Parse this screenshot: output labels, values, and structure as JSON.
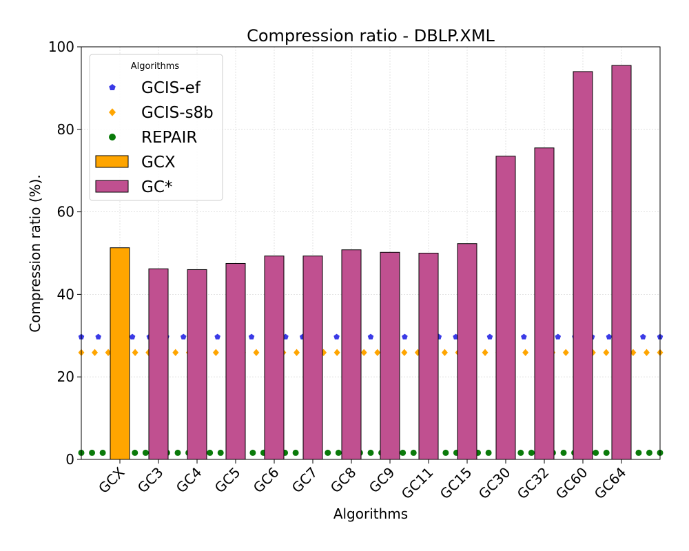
{
  "chart_data": {
    "type": "bar",
    "title": "Compression ratio -  DBLP.XML",
    "xlabel": "Algorithms",
    "ylabel": "Compression ratio (%).",
    "ylim": [
      0,
      100
    ],
    "yticks": [
      0,
      20,
      40,
      60,
      80,
      100
    ],
    "grid": true,
    "legend_placement": "top-left",
    "legend_title": "Algorithms",
    "categories": [
      "GCX",
      "GC3",
      "GC4",
      "GC5",
      "GC6",
      "GC7",
      "GC8",
      "GC9",
      "GC11",
      "GC15",
      "GC30",
      "GC32",
      "GC60",
      "GC64"
    ],
    "bar_series": [
      {
        "name": "GCX",
        "color": "#ffa500",
        "values": [
          51.3,
          null,
          null,
          null,
          null,
          null,
          null,
          null,
          null,
          null,
          null,
          null,
          null,
          null
        ]
      },
      {
        "name": "GC*",
        "color": "#c05090",
        "values": [
          null,
          46.2,
          46.0,
          47.5,
          49.3,
          49.3,
          50.8,
          50.2,
          50.0,
          52.3,
          73.5,
          75.5,
          94.0,
          95.5
        ]
      }
    ],
    "line_series": [
      {
        "name": "GCIS-ef",
        "color": "#3a3ae6",
        "marker": "pentagon",
        "value": 29.7
      },
      {
        "name": "GCIS-s8b",
        "color": "#ffa500",
        "marker": "diamond",
        "value": 25.9
      },
      {
        "name": "REPAIR",
        "color": "#0a7a0a",
        "marker": "circle",
        "value": 1.6
      }
    ]
  }
}
